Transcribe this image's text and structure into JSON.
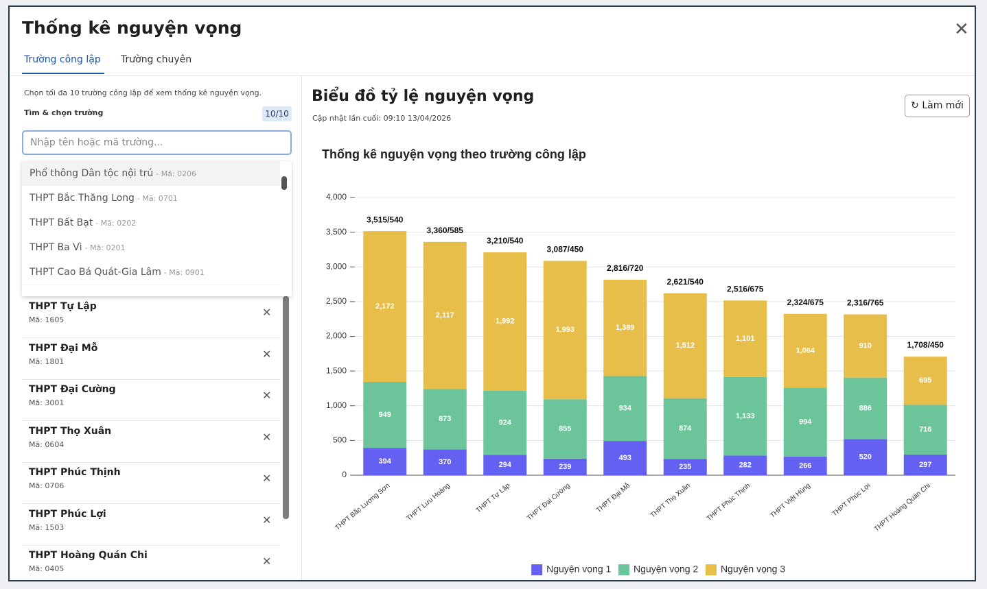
{
  "modal": {
    "title": "Thống kê nguyện vọng",
    "tabs": [
      "Trường công lập",
      "Trường chuyên"
    ]
  },
  "sidebar": {
    "hint": "Chọn tối đa 10 trường công lập để xem thống kê nguyện vọng.",
    "search_label": "Tìm & chọn trường",
    "count": "10/10",
    "placeholder": "Nhập tên hoặc mã trường...",
    "dropdown": [
      {
        "name": "Phổ thông Dân tộc nội trú",
        "code": "- Mã: 0206"
      },
      {
        "name": "THPT Bắc Thăng Long",
        "code": "- Mã: 0701"
      },
      {
        "name": "THPT Bất Bạt",
        "code": "- Mã: 0202"
      },
      {
        "name": "THPT Ba Vì",
        "code": "- Mã: 0201"
      },
      {
        "name": "THPT Cao Bá Quát-Gia Lâm",
        "code": "- Mã: 0901"
      }
    ],
    "selected": [
      {
        "name": "THPT Tự Lập",
        "code": "Mã: 1605"
      },
      {
        "name": "THPT Đại Mỗ",
        "code": "Mã: 1801"
      },
      {
        "name": "THPT Đại Cường",
        "code": "Mã: 3001"
      },
      {
        "name": "THPT Thọ Xuân",
        "code": "Mã: 0604"
      },
      {
        "name": "THPT Phúc Thịnh",
        "code": "Mã: 0706"
      },
      {
        "name": "THPT Phúc Lợi",
        "code": "Mã: 1503"
      },
      {
        "name": "THPT Hoàng Quán Chi",
        "code": "Mã: 0405"
      }
    ]
  },
  "panel": {
    "title": "Biểu đồ tỷ lệ nguyện vọng",
    "updated": "Cập nhật lần cuối: 09:10 13/04/2026",
    "refresh": "Làm mới"
  },
  "chart_data": {
    "type": "stacked_bar",
    "title": "Thống kê nguyện vọng theo trường công lập",
    "categories": [
      "THPT Bắc Lương Sơn",
      "THPT Lưu Hoàng",
      "THPT Tự Lập",
      "THPT Đại Cường",
      "THPT Đại Mỗ",
      "THPT Thọ Xuân",
      "THPT Phúc Thịnh",
      "THPT Việt Hùng",
      "THPT Phúc Lợi",
      "THPT Hoàng Quán Chi"
    ],
    "series": [
      {
        "name": "Nguyện vọng 1",
        "color": "#6360f2",
        "values": [
          394,
          370,
          294,
          239,
          493,
          235,
          282,
          266,
          520,
          297
        ]
      },
      {
        "name": "Nguyện vọng 2",
        "color": "#6cc49b",
        "values": [
          949,
          873,
          924,
          855,
          934,
          874,
          1133,
          994,
          886,
          716
        ],
        "value_labels": [
          "949",
          "873",
          "924",
          "855",
          "934",
          "874",
          "1,133",
          "994",
          "886",
          "716"
        ]
      },
      {
        "name": "Nguyện vọng 3",
        "color": "#e8be4b",
        "values": [
          2172,
          2117,
          1992,
          1993,
          1389,
          1512,
          1101,
          1064,
          910,
          695
        ],
        "value_labels": [
          "2,172",
          "2,117",
          "1,992",
          "1,993",
          "1,389",
          "1,512",
          "1,101",
          "1,064",
          "910",
          "695"
        ]
      }
    ],
    "total_labels": [
      "3,515/540",
      "3,360/585",
      "3,210/540",
      "3,087/450",
      "2,816/720",
      "2,621/540",
      "2,516/675",
      "2,324/675",
      "2,316/765",
      "1,708/450"
    ],
    "ylim": [
      0,
      4000
    ],
    "yticks": [
      0,
      500,
      {
        "value": 1000,
        "label": "1,000"
      },
      {
        "value": 1500,
        "label": "1,500"
      },
      {
        "value": 2000,
        "label": "2,000"
      },
      {
        "value": 2500,
        "label": "2,500"
      },
      {
        "value": 3000,
        "label": "3,000"
      },
      {
        "value": 3500,
        "label": "3,500"
      },
      {
        "value": 4000,
        "label": "4,000"
      }
    ],
    "grid": true,
    "legend": "bottom"
  }
}
